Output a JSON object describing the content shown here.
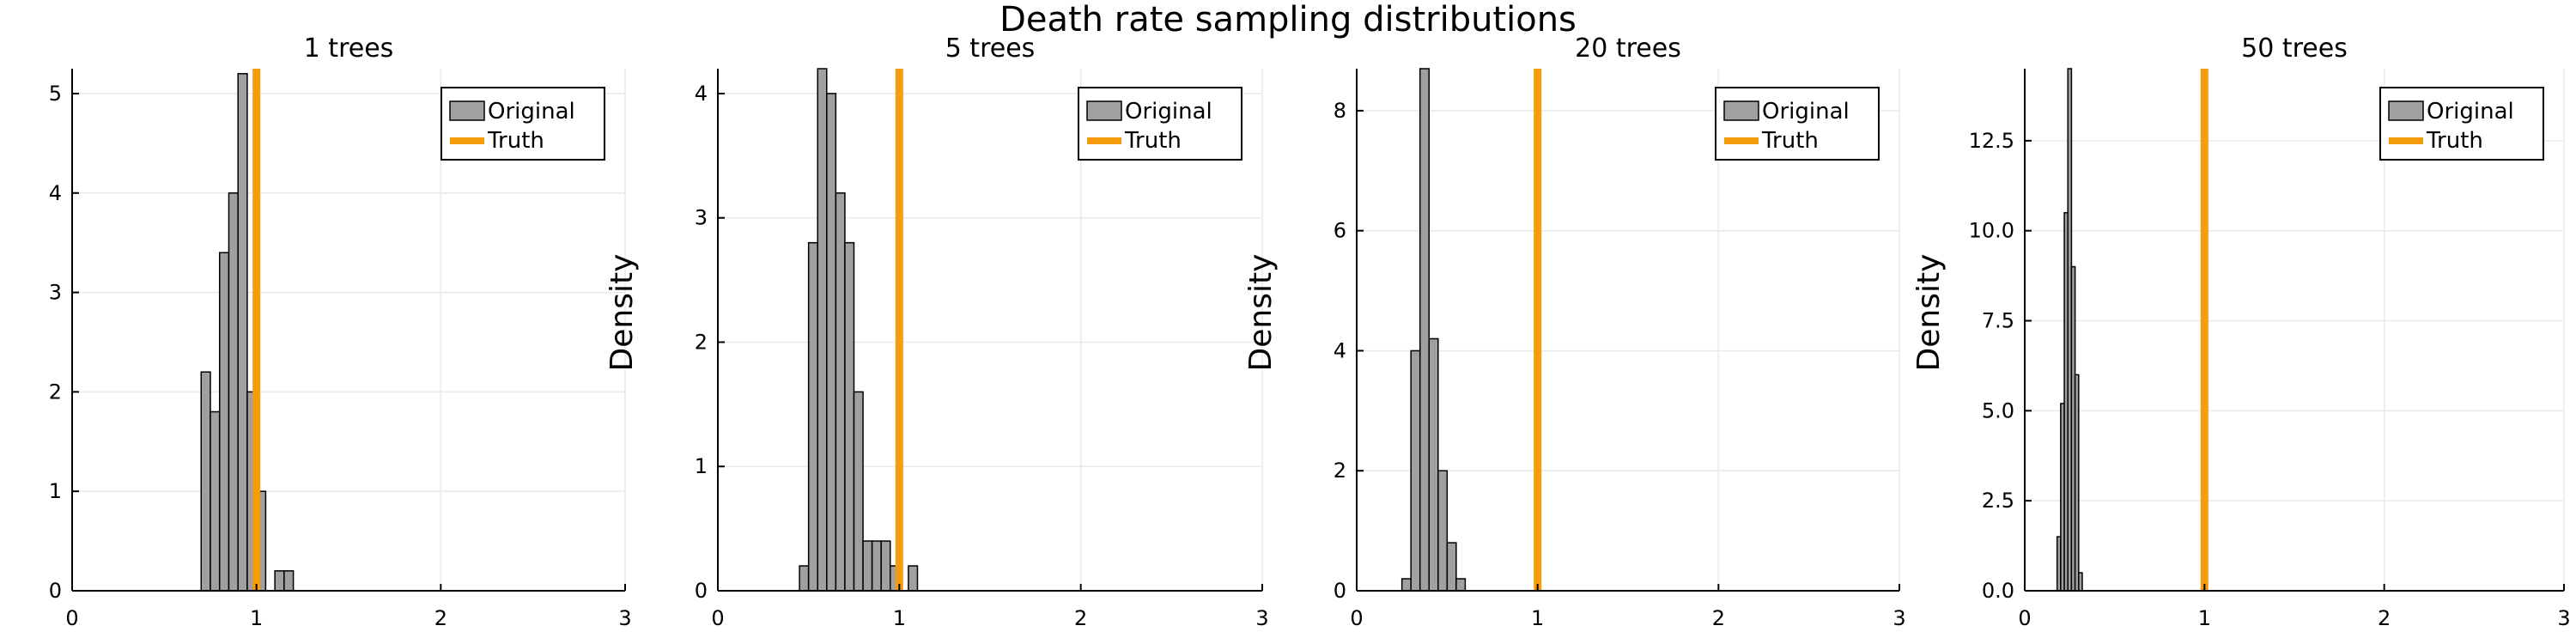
{
  "figure": {
    "title": "Death rate sampling distributions",
    "legend_labels": {
      "hist": "Original",
      "truth": "Truth"
    }
  },
  "colors": {
    "bar_fill": "#a0a0a0",
    "bar_stroke": "#000000",
    "truth_line": "#f59c0c",
    "grid": "#e9e9e9",
    "axis": "#000000"
  },
  "chart_data": [
    {
      "type": "histogram",
      "title": "1 trees",
      "xlabel": "",
      "ylabel": "",
      "xlim": [
        0,
        3
      ],
      "ylim": [
        0,
        5.25
      ],
      "xticks": [
        0,
        1,
        2,
        3
      ],
      "yticks": [
        0,
        1,
        2,
        3,
        4,
        5
      ],
      "ytick_labels": [
        "0",
        "1",
        "2",
        "3",
        "4",
        "5"
      ],
      "grid": true,
      "legend": "top-right",
      "truth": 1.0,
      "bins": [
        {
          "x0": 0.7,
          "x1": 0.75,
          "density": 2.2
        },
        {
          "x0": 0.75,
          "x1": 0.8,
          "density": 1.8
        },
        {
          "x0": 0.8,
          "x1": 0.85,
          "density": 3.4
        },
        {
          "x0": 0.85,
          "x1": 0.9,
          "density": 4.0
        },
        {
          "x0": 0.9,
          "x1": 0.95,
          "density": 5.2
        },
        {
          "x0": 0.95,
          "x1": 1.0,
          "density": 2.0
        },
        {
          "x0": 1.0,
          "x1": 1.05,
          "density": 1.0
        },
        {
          "x0": 1.1,
          "x1": 1.15,
          "density": 0.2
        },
        {
          "x0": 1.15,
          "x1": 1.2,
          "density": 0.2
        }
      ]
    },
    {
      "type": "histogram",
      "title": "5 trees",
      "xlabel": "",
      "ylabel": "Density",
      "xlim": [
        0,
        3
      ],
      "ylim": [
        0,
        4.2
      ],
      "xticks": [
        0,
        1,
        2,
        3
      ],
      "yticks": [
        0,
        1,
        2,
        3,
        4
      ],
      "ytick_labels": [
        "0",
        "1",
        "2",
        "3",
        "4"
      ],
      "grid": true,
      "legend": "top-right",
      "truth": 1.0,
      "bins": [
        {
          "x0": 0.45,
          "x1": 0.5,
          "density": 0.2
        },
        {
          "x0": 0.5,
          "x1": 0.55,
          "density": 2.8
        },
        {
          "x0": 0.55,
          "x1": 0.6,
          "density": 4.2
        },
        {
          "x0": 0.6,
          "x1": 0.65,
          "density": 4.0
        },
        {
          "x0": 0.65,
          "x1": 0.7,
          "density": 3.2
        },
        {
          "x0": 0.7,
          "x1": 0.75,
          "density": 2.8
        },
        {
          "x0": 0.75,
          "x1": 0.8,
          "density": 1.6
        },
        {
          "x0": 0.8,
          "x1": 0.85,
          "density": 0.4
        },
        {
          "x0": 0.85,
          "x1": 0.9,
          "density": 0.4
        },
        {
          "x0": 0.9,
          "x1": 0.95,
          "density": 0.4
        },
        {
          "x0": 0.95,
          "x1": 1.0,
          "density": 0.2
        },
        {
          "x0": 1.05,
          "x1": 1.1,
          "density": 0.2
        }
      ]
    },
    {
      "type": "histogram",
      "title": "20 trees",
      "xlabel": "",
      "ylabel": "Density",
      "xlim": [
        0,
        3
      ],
      "ylim": [
        0,
        8.7
      ],
      "xticks": [
        0,
        1,
        2,
        3
      ],
      "yticks": [
        0,
        2,
        4,
        6,
        8
      ],
      "ytick_labels": [
        "0",
        "2",
        "4",
        "6",
        "8"
      ],
      "grid": true,
      "legend": "top-right",
      "truth": 1.0,
      "bins": [
        {
          "x0": 0.25,
          "x1": 0.3,
          "density": 0.2
        },
        {
          "x0": 0.3,
          "x1": 0.35,
          "density": 4.0
        },
        {
          "x0": 0.35,
          "x1": 0.4,
          "density": 8.7
        },
        {
          "x0": 0.4,
          "x1": 0.45,
          "density": 4.2
        },
        {
          "x0": 0.45,
          "x1": 0.5,
          "density": 2.0
        },
        {
          "x0": 0.5,
          "x1": 0.55,
          "density": 0.8
        },
        {
          "x0": 0.55,
          "x1": 0.6,
          "density": 0.2
        }
      ]
    },
    {
      "type": "histogram",
      "title": "50 trees",
      "xlabel": "",
      "ylabel": "Density",
      "xlim": [
        0,
        3
      ],
      "ylim": [
        0,
        14.5
      ],
      "xticks": [
        0,
        1,
        2,
        3
      ],
      "yticks": [
        0,
        2.5,
        5,
        7.5,
        10,
        12.5
      ],
      "ytick_labels": [
        "0.0",
        "2.5",
        "5.0",
        "7.5",
        "10.0",
        "12.5"
      ],
      "grid": true,
      "legend": "top-right",
      "truth": 1.0,
      "bins": [
        {
          "x0": 0.18,
          "x1": 0.2,
          "density": 1.5
        },
        {
          "x0": 0.2,
          "x1": 0.22,
          "density": 5.2
        },
        {
          "x0": 0.22,
          "x1": 0.24,
          "density": 10.5
        },
        {
          "x0": 0.24,
          "x1": 0.26,
          "density": 14.5
        },
        {
          "x0": 0.26,
          "x1": 0.28,
          "density": 9.0
        },
        {
          "x0": 0.28,
          "x1": 0.3,
          "density": 6.0
        },
        {
          "x0": 0.3,
          "x1": 0.32,
          "density": 0.5
        }
      ]
    }
  ]
}
